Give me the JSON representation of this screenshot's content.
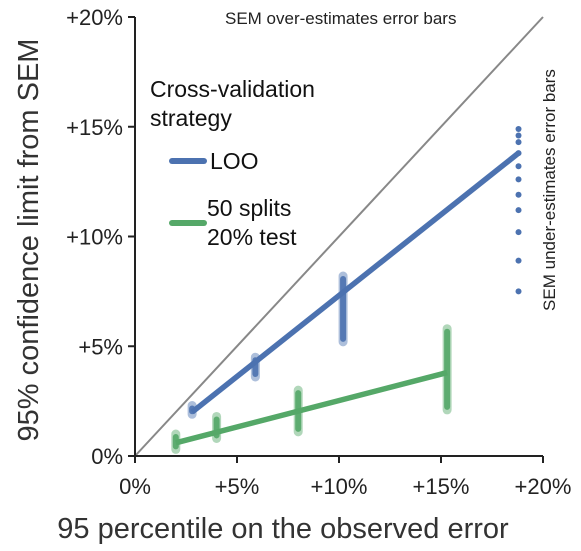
{
  "chart_data": {
    "type": "scatter",
    "title": "",
    "xlabel": "95 percentile on the observed error",
    "ylabel": "95% confidence limit from SEM",
    "xlim": [
      0,
      20
    ],
    "ylim": [
      0,
      20
    ],
    "x_ticks": [
      0,
      5,
      10,
      15,
      20
    ],
    "y_ticks": [
      0,
      5,
      10,
      15,
      20
    ],
    "x_tick_labels": [
      "0%",
      "+5%",
      "+10%",
      "+15%",
      "+20%"
    ],
    "y_tick_labels": [
      "0%",
      "+5%",
      "+10%",
      "+15%",
      "+20%"
    ],
    "grid": false,
    "legend": {
      "title_lines": [
        "Cross-validation",
        "strategy"
      ],
      "placement": "top-left"
    },
    "annotations": {
      "over": "SEM over-estimates error bars",
      "under": "SEM under-estimates error bars"
    },
    "identity_line": {
      "from": [
        0,
        0
      ],
      "to": [
        20,
        20
      ],
      "color": "#888888"
    },
    "series": [
      {
        "name": "LOO",
        "label_lines": [
          "LOO"
        ],
        "color": "#4c72b0",
        "fit_line": [
          [
            2.8,
            2.0
          ],
          [
            18.8,
            13.8
          ]
        ],
        "clusters": [
          {
            "x": 2.8,
            "y_min": 1.9,
            "y_max": 2.3
          },
          {
            "x": 5.9,
            "y_min": 3.6,
            "y_max": 4.5
          },
          {
            "x": 10.2,
            "y_min": 5.2,
            "y_max": 8.2
          }
        ],
        "points": [
          [
            18.8,
            7.5
          ],
          [
            18.8,
            8.9
          ],
          [
            18.8,
            10.2
          ],
          [
            18.8,
            11.2
          ],
          [
            18.8,
            11.9
          ],
          [
            18.8,
            12.6
          ],
          [
            18.8,
            13.2
          ],
          [
            18.8,
            13.8
          ],
          [
            18.8,
            14.3
          ],
          [
            18.8,
            14.6
          ],
          [
            18.8,
            14.9
          ]
        ]
      },
      {
        "name": "50 splits 20% test",
        "label_lines": [
          "50 splits",
          "20% test"
        ],
        "color": "#55a868",
        "fit_line": [
          [
            2.0,
            0.6
          ],
          [
            15.3,
            3.8
          ]
        ],
        "clusters": [
          {
            "x": 2.0,
            "y_min": 0.3,
            "y_max": 1.0
          },
          {
            "x": 4.0,
            "y_min": 0.8,
            "y_max": 1.8
          },
          {
            "x": 8.0,
            "y_min": 1.1,
            "y_max": 3.0
          },
          {
            "x": 15.3,
            "y_min": 2.1,
            "y_max": 5.8
          }
        ],
        "points": []
      }
    ]
  }
}
